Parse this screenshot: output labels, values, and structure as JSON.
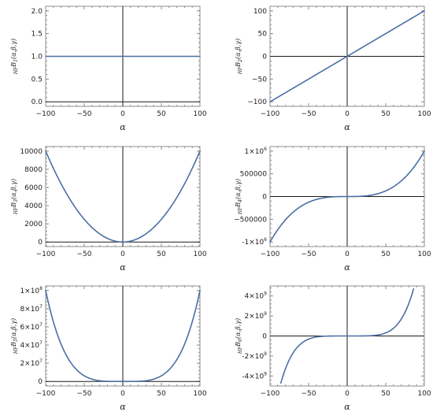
{
  "chart_data": [
    {
      "type": "line",
      "xlabel": "α",
      "ylabel": "HFB1(α,β,γ)",
      "xlim": [
        -100,
        100
      ],
      "ylim": [
        -0.1,
        2.1
      ],
      "x_ticks": [
        -100,
        -50,
        0,
        50,
        100
      ],
      "y_ticks": [
        0.0,
        0.5,
        1.0,
        1.5,
        2.0
      ],
      "y_tick_labels": [
        "0.0",
        "0.5",
        "1.0",
        "1.5",
        "2.0"
      ],
      "function": "1",
      "series": [
        {
          "x": [
            -100,
            -50,
            0,
            50,
            100
          ],
          "y": [
            1,
            1,
            1,
            1,
            1
          ]
        }
      ]
    },
    {
      "type": "line",
      "xlabel": "α",
      "ylabel": "HFB2(α,β,γ)",
      "xlim": [
        -100,
        100
      ],
      "ylim": [
        -110,
        110
      ],
      "x_ticks": [
        -100,
        -50,
        0,
        50,
        100
      ],
      "y_ticks": [
        -100,
        -50,
        0,
        50,
        100
      ],
      "y_tick_labels": [
        "-100",
        "-50",
        "0",
        "50",
        "100"
      ],
      "function": "x",
      "series": [
        {
          "x": [
            -100,
            -50,
            0,
            50,
            100
          ],
          "y": [
            -100,
            -50,
            0,
            50,
            100
          ]
        }
      ]
    },
    {
      "type": "line",
      "xlabel": "α",
      "ylabel": "HFB3(α,β,γ)",
      "xlim": [
        -100,
        100
      ],
      "ylim": [
        -500,
        10500
      ],
      "x_ticks": [
        -100,
        -50,
        0,
        50,
        100
      ],
      "y_ticks": [
        0,
        2000,
        4000,
        6000,
        8000,
        10000
      ],
      "y_tick_labels": [
        "0",
        "2000",
        "4000",
        "6000",
        "8000",
        "10000"
      ],
      "function": "x^2",
      "series": [
        {
          "x": [
            -100,
            -50,
            0,
            50,
            100
          ],
          "y": [
            10000,
            2500,
            0,
            2500,
            10000
          ]
        }
      ]
    },
    {
      "type": "line",
      "xlabel": "α",
      "ylabel": "HFB4(α,β,γ)",
      "xlim": [
        -100,
        100
      ],
      "ylim": [
        -1100000,
        1100000
      ],
      "x_ticks": [
        -100,
        -50,
        0,
        50,
        100
      ],
      "y_ticks": [
        -1000000,
        -500000,
        0,
        500000,
        1000000
      ],
      "y_tick_labels": [
        "-1×10^6",
        "-500000",
        "0",
        "500000",
        "1×10^6"
      ],
      "function": "x^3",
      "series": [
        {
          "x": [
            -100,
            -50,
            0,
            50,
            100
          ],
          "y": [
            -1000000,
            -125000,
            0,
            125000,
            1000000
          ]
        }
      ]
    },
    {
      "type": "line",
      "xlabel": "α",
      "ylabel": "HFB5(α,β,γ)",
      "xlim": [
        -100,
        100
      ],
      "ylim": [
        -5000000,
        105000000
      ],
      "x_ticks": [
        -100,
        -50,
        0,
        50,
        100
      ],
      "y_ticks": [
        0,
        20000000,
        40000000,
        60000000,
        80000000,
        100000000
      ],
      "y_tick_labels": [
        "0",
        "2×10^7",
        "4×10^7",
        "6×10^7",
        "8×10^7",
        "1×10^8"
      ],
      "function": "x^4",
      "series": [
        {
          "x": [
            -100,
            -50,
            0,
            50,
            100
          ],
          "y": [
            100000000,
            6250000,
            0,
            6250000,
            100000000
          ]
        }
      ]
    },
    {
      "type": "line",
      "xlabel": "α",
      "ylabel": "HFB6(α,β,γ)",
      "xlim": [
        -100,
        100
      ],
      "ylim": [
        -5000000000,
        5000000000
      ],
      "x_ticks": [
        -100,
        -50,
        0,
        50,
        100
      ],
      "y_ticks": [
        -4000000000,
        -2000000000,
        0,
        2000000000,
        4000000000
      ],
      "y_tick_labels": [
        "-4×10^9",
        "-2×10^9",
        "0",
        "2×10^9",
        "4×10^9"
      ],
      "function": "x^5",
      "series": [
        {
          "x": [
            -86,
            -50,
            0,
            50,
            86
          ],
          "y": [
            -4700000000,
            -312500000,
            0,
            312500000,
            4700000000
          ]
        }
      ]
    }
  ]
}
